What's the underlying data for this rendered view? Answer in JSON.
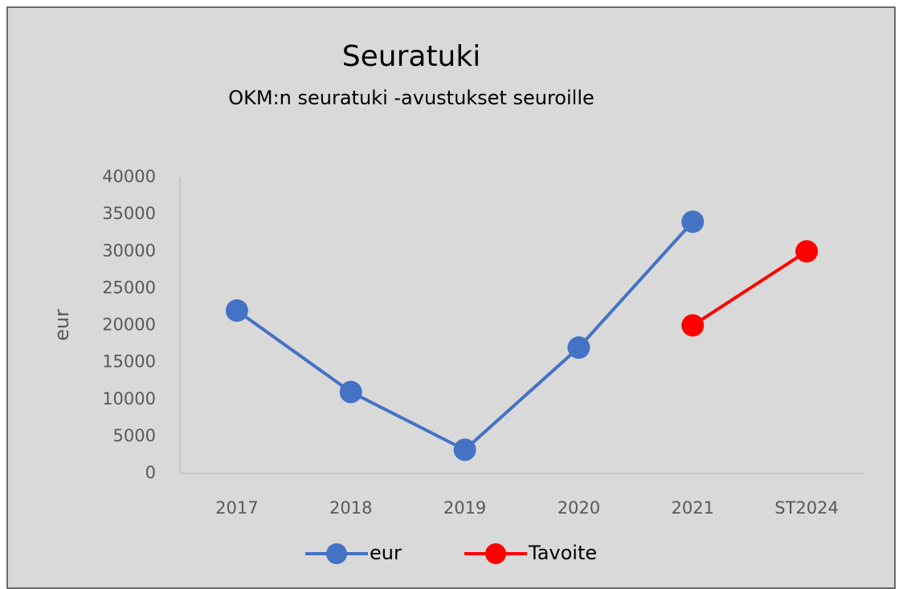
{
  "chart_data": {
    "type": "line",
    "title": "Seuratuki",
    "subtitle": "OKM:n seuratuki -avustukset seuroille",
    "y_label": "eur",
    "categories": [
      "2017",
      "2018",
      "2019",
      "2020",
      "2021",
      "ST2024"
    ],
    "series": [
      {
        "name": "eur",
        "color": "#4472c4",
        "values": [
          22000,
          11000,
          3200,
          17000,
          34000,
          null
        ]
      },
      {
        "name": "Tavoite",
        "color": "#ff0000",
        "values": [
          null,
          null,
          null,
          null,
          20000,
          30000
        ]
      }
    ],
    "ylim": [
      0,
      40000
    ],
    "yticks": [
      0,
      5000,
      10000,
      15000,
      20000,
      25000,
      30000,
      35000,
      40000
    ],
    "grid": false,
    "legend": "bottom"
  }
}
